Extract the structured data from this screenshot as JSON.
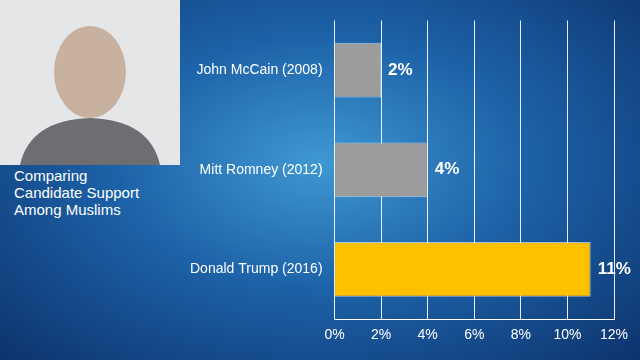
{
  "chart_data": {
    "type": "bar",
    "title": "Comparing Candidate Support Among Muslims",
    "orientation": "horizontal",
    "categories": [
      "John McCain (2008)",
      "Mitt Romney (2012)",
      "Donald Trump (2016)"
    ],
    "values": [
      2,
      4,
      11
    ],
    "value_labels": [
      "2%",
      "4%",
      "11%"
    ],
    "colors": [
      "#9c9c9c",
      "#9c9c9c",
      "#ffc000"
    ],
    "xlim": [
      0,
      12
    ],
    "xticks": [
      {
        "value": 0,
        "label": "0%"
      },
      {
        "value": 2,
        "label": "2%"
      },
      {
        "value": 4,
        "label": "4%"
      },
      {
        "value": 6,
        "label": "6%"
      },
      {
        "value": 8,
        "label": "8%"
      },
      {
        "value": 10,
        "label": "10%"
      },
      {
        "value": 12,
        "label": "12%"
      }
    ],
    "grid": true,
    "data_labels": true
  }
}
